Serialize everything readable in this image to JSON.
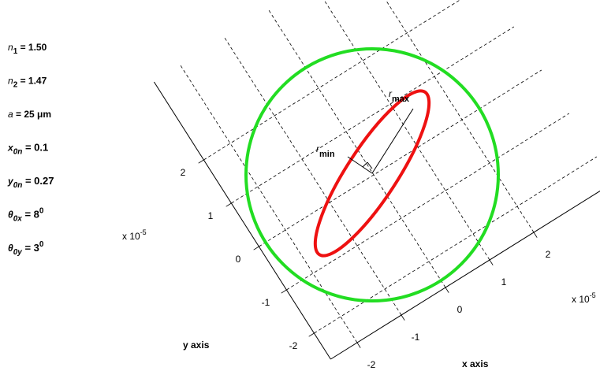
{
  "parameters": [
    {
      "symbol": "n",
      "sub": "1",
      "text": " = 1.50"
    },
    {
      "symbol": "n",
      "sub": "2",
      "text": " = 1.47"
    },
    {
      "symbol": "a",
      "text": " = 25 μm"
    },
    {
      "symbol": "x",
      "sub": "0n",
      "text": " =  0.1"
    },
    {
      "symbol": "y",
      "sub": "0n",
      "text": " =  0.27"
    },
    {
      "symbol": "θ",
      "sub": "0x",
      "text": " = 8",
      "sup": "0"
    },
    {
      "symbol": "θ",
      "sub": "0y",
      "text": " = 3",
      "sup": "0"
    }
  ],
  "plot": {
    "x_ticks": [
      -2,
      -1,
      0,
      1,
      2
    ],
    "y_ticks": [
      -2,
      -1,
      0,
      1,
      2
    ],
    "x_label": "x axis",
    "y_label": "y axis",
    "scale": {
      "text": "x 10",
      "sup": "-5"
    },
    "r_max": {
      "symbol": "r",
      "sub": "max"
    },
    "r_min": {
      "symbol": "r",
      "sub": "min"
    }
  }
}
